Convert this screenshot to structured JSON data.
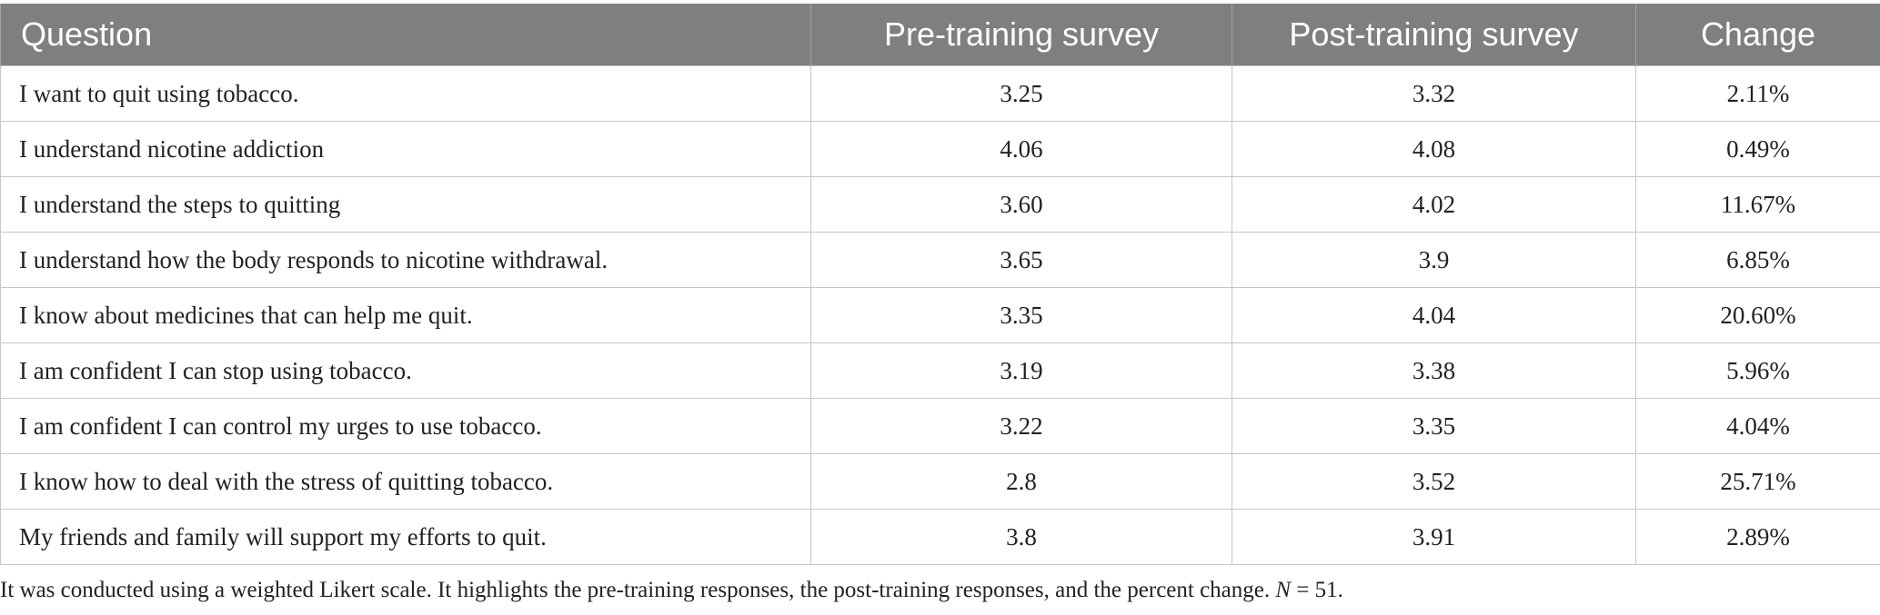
{
  "table": {
    "headers": {
      "question": "Question",
      "pre": "Pre-training survey",
      "post": "Post-training survey",
      "change": "Change"
    },
    "rows": [
      {
        "question": "I want to quit using tobacco.",
        "pre": "3.25",
        "post": "3.32",
        "change": "2.11%"
      },
      {
        "question": "I understand nicotine addiction",
        "pre": "4.06",
        "post": "4.08",
        "change": "0.49%"
      },
      {
        "question": "I understand the steps to quitting",
        "pre": "3.60",
        "post": "4.02",
        "change": "11.67%"
      },
      {
        "question": "I understand how the body responds to nicotine withdrawal.",
        "pre": "3.65",
        "post": "3.9",
        "change": "6.85%"
      },
      {
        "question": "I know about medicines that can help me quit.",
        "pre": "3.35",
        "post": "4.04",
        "change": "20.60%"
      },
      {
        "question": "I am confident I can stop using tobacco.",
        "pre": "3.19",
        "post": "3.38",
        "change": "5.96%"
      },
      {
        "question": "I am confident I can control my urges to use tobacco.",
        "pre": "3.22",
        "post": "3.35",
        "change": "4.04%"
      },
      {
        "question": "I know how to deal with the stress of quitting tobacco.",
        "pre": "2.8",
        "post": "3.52",
        "change": "25.71%"
      },
      {
        "question": "My friends and family will support my efforts to quit.",
        "pre": "3.8",
        "post": "3.91",
        "change": "2.89%"
      }
    ]
  },
  "footnote": {
    "text": "It was conducted using a weighted Likert scale. It highlights the pre-training responses, the post-training responses, and the percent change.",
    "n_label": "N",
    "n_value": " = 51."
  },
  "colors": {
    "header_bg": "#7e807f",
    "header_text": "#ffffff",
    "grid_line": "#c6c6c6"
  }
}
